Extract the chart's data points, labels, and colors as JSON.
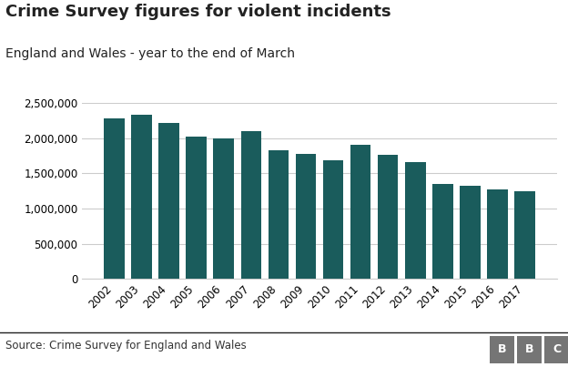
{
  "title": "Crime Survey figures for violent incidents",
  "subtitle": "England and Wales - year to the end of March",
  "source": "Source: Crime Survey for England and Wales",
  "years": [
    2002,
    2003,
    2004,
    2005,
    2006,
    2007,
    2008,
    2009,
    2010,
    2011,
    2012,
    2013,
    2014,
    2015,
    2016,
    2017
  ],
  "values": [
    2280000,
    2330000,
    2210000,
    2020000,
    1990000,
    2100000,
    1820000,
    1780000,
    1680000,
    1900000,
    1760000,
    1660000,
    1350000,
    1320000,
    1270000,
    1240000
  ],
  "bar_color": "#1a5c5c",
  "background_color": "#ffffff",
  "ylim": [
    0,
    2500000
  ],
  "yticks": [
    0,
    500000,
    1000000,
    1500000,
    2000000,
    2500000
  ],
  "grid_color": "#cccccc",
  "title_fontsize": 13,
  "subtitle_fontsize": 10,
  "tick_fontsize": 8.5,
  "source_fontsize": 8.5,
  "bbc_box_color": "#757575",
  "bbc_text_color": "#ffffff"
}
